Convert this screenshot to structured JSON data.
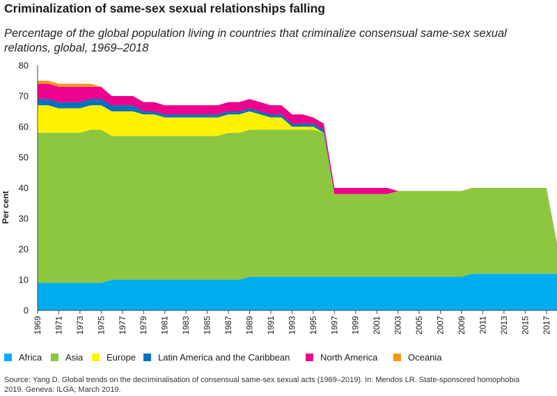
{
  "chart_data": {
    "type": "area",
    "stacked": true,
    "title": "Criminalization of same-sex sexual relationships falling",
    "subtitle": "Percentage of the global population living in countries that criminalize consensual same-sex sexual relations, global, 1969–2018",
    "xlabel": "",
    "ylabel": "Per cent",
    "ylim": [
      0,
      80
    ],
    "yticks": [
      0,
      10,
      20,
      30,
      40,
      50,
      60,
      70,
      80
    ],
    "xticks": [
      1969,
      1971,
      1973,
      1975,
      1977,
      1979,
      1981,
      1983,
      1985,
      1987,
      1989,
      1991,
      1993,
      1995,
      1997,
      1999,
      2001,
      2003,
      2005,
      2007,
      2009,
      2011,
      2013,
      2015,
      2017
    ],
    "x": [
      1969,
      1970,
      1971,
      1972,
      1973,
      1974,
      1975,
      1976,
      1977,
      1978,
      1979,
      1980,
      1981,
      1982,
      1983,
      1984,
      1985,
      1986,
      1987,
      1988,
      1989,
      1990,
      1991,
      1992,
      1993,
      1994,
      1995,
      1996,
      1997,
      1998,
      1999,
      2000,
      2001,
      2002,
      2003,
      2004,
      2005,
      2006,
      2007,
      2008,
      2009,
      2010,
      2011,
      2012,
      2013,
      2014,
      2015,
      2016,
      2017,
      2018
    ],
    "series": [
      {
        "name": "Africa",
        "color": "#00aeef",
        "values": [
          9,
          9,
          9,
          9,
          9,
          9,
          9,
          10,
          10,
          10,
          10,
          10,
          10,
          10,
          10,
          10,
          10,
          10,
          10,
          10,
          11,
          11,
          11,
          11,
          11,
          11,
          11,
          11,
          11,
          11,
          11,
          11,
          11,
          11,
          11,
          11,
          11,
          11,
          11,
          11,
          11,
          12,
          12,
          12,
          12,
          12,
          12,
          12,
          12,
          12
        ]
      },
      {
        "name": "Asia",
        "color": "#8dc63f",
        "values": [
          49,
          49,
          49,
          49,
          49,
          50,
          50,
          47,
          47,
          47,
          47,
          47,
          47,
          47,
          47,
          47,
          47,
          47,
          48,
          48,
          48,
          48,
          48,
          48,
          48,
          48,
          48,
          47,
          27,
          27,
          27,
          27,
          27,
          27,
          28,
          28,
          28,
          28,
          28,
          28,
          28,
          28,
          28,
          28,
          28,
          28,
          28,
          28,
          28,
          10
        ]
      },
      {
        "name": "Europe",
        "color": "#fff200",
        "values": [
          9,
          9,
          8,
          8,
          8,
          8,
          8,
          8,
          8,
          8,
          7,
          7,
          6,
          6,
          6,
          6,
          6,
          6,
          6,
          6,
          6,
          5,
          4,
          4,
          1,
          1,
          1,
          0,
          0,
          0,
          0,
          0,
          0,
          0,
          0,
          0,
          0,
          0,
          0,
          0,
          0,
          0,
          0,
          0,
          0,
          0,
          0,
          0,
          0,
          0
        ]
      },
      {
        "name": "Latin America and the Caribbean",
        "color": "#0072bc",
        "values": [
          2,
          2,
          2,
          2,
          2,
          2,
          2,
          2,
          2,
          2,
          1,
          1,
          1,
          1,
          1,
          1,
          1,
          1,
          1,
          1,
          1,
          1,
          1,
          1,
          1,
          1,
          1,
          1,
          0,
          0,
          0,
          0,
          0,
          0,
          0,
          0,
          0,
          0,
          0,
          0,
          0,
          0,
          0,
          0,
          0,
          0,
          0,
          0,
          0,
          0
        ]
      },
      {
        "name": "North America",
        "color": "#ec008c",
        "values": [
          5,
          5,
          5,
          5,
          5,
          4,
          4,
          3,
          3,
          3,
          3,
          3,
          3,
          3,
          3,
          3,
          3,
          3,
          3,
          3,
          3,
          3,
          3,
          3,
          3,
          3,
          2,
          2,
          2,
          2,
          2,
          2,
          2,
          2,
          0,
          0,
          0,
          0,
          0,
          0,
          0,
          0,
          0,
          0,
          0,
          0,
          0,
          0,
          0,
          0
        ]
      },
      {
        "name": "Oceania",
        "color": "#f7941d",
        "values": [
          1,
          1,
          1,
          1,
          1,
          1,
          0,
          0,
          0,
          0,
          0,
          0,
          0,
          0,
          0,
          0,
          0,
          0,
          0,
          0,
          0,
          0,
          0,
          0,
          0,
          0,
          0,
          0,
          0,
          0,
          0,
          0,
          0,
          0,
          0,
          0,
          0,
          0,
          0,
          0,
          0,
          0,
          0,
          0,
          0,
          0,
          0,
          0,
          0,
          0
        ]
      }
    ],
    "legend_position": "bottom"
  },
  "source": "Source: Yang D. Global trends on the decriminalisation of consensual same-sex sexual acts (1969–2019). In: Mendos LR. State-sponsored homophobia 2019. Geneva: ILGA; March 2019."
}
